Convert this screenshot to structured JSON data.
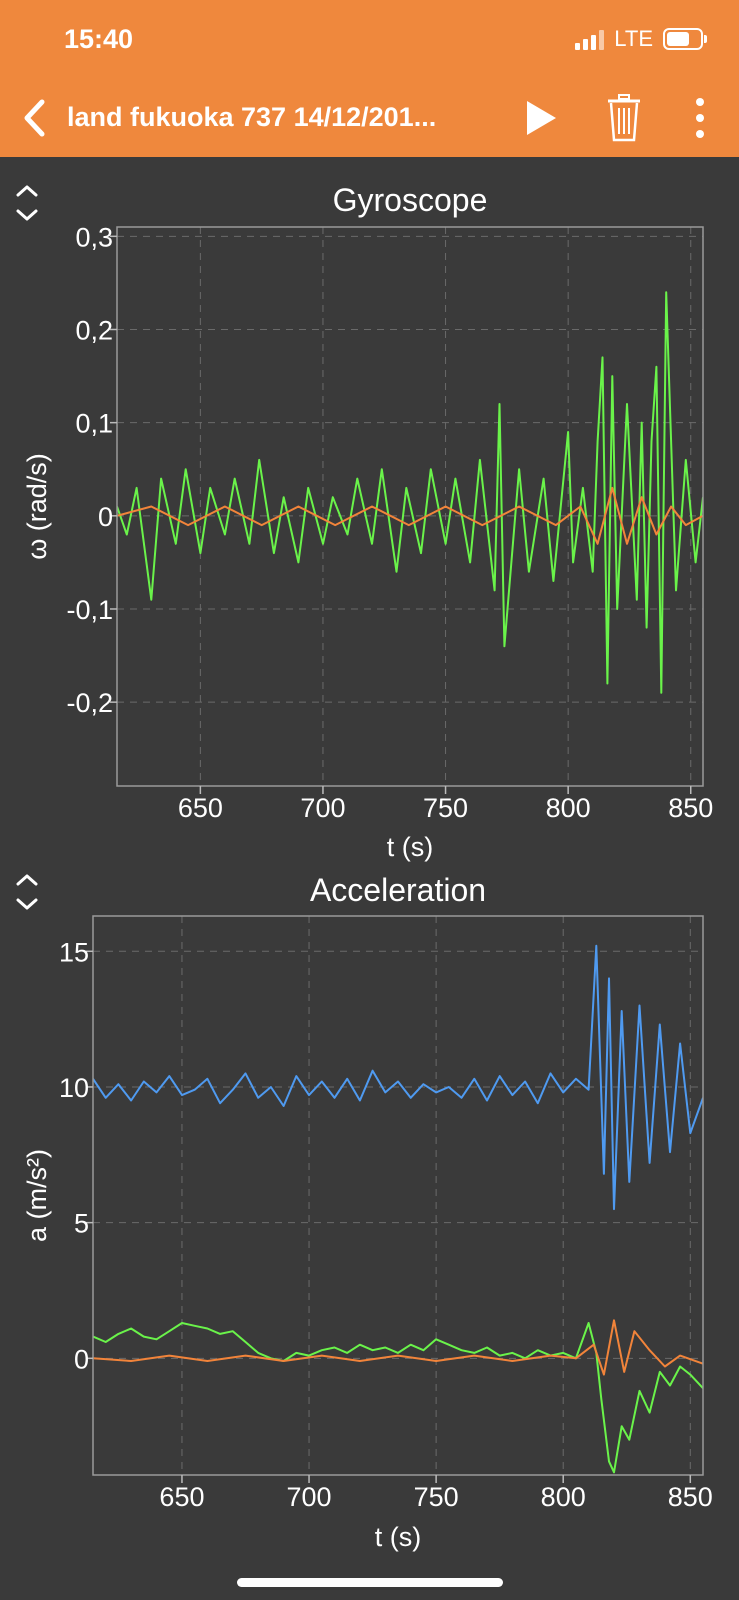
{
  "status_bar": {
    "time": "15:40",
    "network": "LTE"
  },
  "toolbar": {
    "title": "land fukuoka 737 14/12/201..."
  },
  "icons": {
    "back": "chevron-left-icon",
    "play": "play-icon",
    "trash": "trash-icon",
    "more": "more-vertical-icon",
    "expand": "expand-vertical-icon"
  },
  "colors": {
    "header": "#ef883d",
    "background": "#3a3a3a",
    "series_green": "#6af34a",
    "series_orange": "#f2843a",
    "series_blue": "#4f9af0"
  },
  "chart_data": [
    {
      "type": "line",
      "title": "Gyroscope",
      "xlabel": "t (s)",
      "ylabel": "ω (rad/s)",
      "xlim": [
        616,
        855
      ],
      "ylim": [
        -0.29,
        0.31
      ],
      "xticks": [
        650,
        700,
        750,
        800,
        850
      ],
      "xtick_labels": [
        "650",
        "700",
        "750",
        "800",
        "850"
      ],
      "yticks": [
        0.3,
        0.2,
        0.1,
        0,
        -0.1,
        -0.2
      ],
      "ytick_labels": [
        "0,3",
        "0,2",
        "0,1",
        "0",
        "-0,1",
        "-0,2"
      ],
      "grid": true,
      "series": [
        {
          "color": "green",
          "x": [
            616,
            620,
            624,
            628,
            630,
            634,
            640,
            644,
            650,
            654,
            660,
            664,
            670,
            674,
            680,
            684,
            690,
            694,
            700,
            704,
            710,
            714,
            720,
            724,
            730,
            734,
            740,
            744,
            750,
            754,
            760,
            764,
            770,
            772,
            774,
            780,
            784,
            790,
            794,
            800,
            802,
            806,
            810,
            812,
            814,
            816,
            818,
            820,
            824,
            828,
            830,
            832,
            834,
            836,
            838,
            840,
            844,
            848,
            852,
            855
          ],
          "y": [
            0.01,
            -0.02,
            0.03,
            -0.05,
            -0.09,
            0.04,
            -0.03,
            0.05,
            -0.04,
            0.03,
            -0.02,
            0.04,
            -0.03,
            0.06,
            -0.04,
            0.02,
            -0.05,
            0.03,
            -0.03,
            0.02,
            -0.02,
            0.04,
            -0.03,
            0.05,
            -0.06,
            0.03,
            -0.04,
            0.05,
            -0.03,
            0.04,
            -0.05,
            0.06,
            -0.08,
            0.12,
            -0.14,
            0.05,
            -0.06,
            0.04,
            -0.07,
            0.09,
            -0.05,
            0.03,
            -0.06,
            0.08,
            0.17,
            -0.18,
            0.15,
            -0.1,
            0.12,
            -0.09,
            0.1,
            -0.12,
            0.08,
            0.16,
            -0.19,
            0.24,
            -0.08,
            0.06,
            -0.05,
            0.02
          ]
        },
        {
          "color": "orange",
          "x": [
            616,
            630,
            645,
            660,
            675,
            690,
            705,
            720,
            735,
            750,
            765,
            780,
            795,
            805,
            812,
            818,
            824,
            830,
            836,
            842,
            848,
            855
          ],
          "y": [
            0,
            0.01,
            -0.01,
            0.01,
            -0.01,
            0.01,
            -0.01,
            0.01,
            -0.01,
            0.01,
            -0.01,
            0.01,
            -0.01,
            0.01,
            -0.03,
            0.03,
            -0.03,
            0.02,
            -0.02,
            0.01,
            -0.01,
            0
          ]
        }
      ]
    },
    {
      "type": "line",
      "title": "Acceleration",
      "xlabel": "t (s)",
      "ylabel": "a (m/s²)",
      "xlim": [
        615,
        855
      ],
      "ylim": [
        -4.3,
        16.3
      ],
      "xticks": [
        650,
        700,
        750,
        800,
        850
      ],
      "xtick_labels": [
        "650",
        "700",
        "750",
        "800",
        "850"
      ],
      "yticks": [
        15,
        10,
        5,
        0
      ],
      "ytick_labels": [
        "15",
        "10",
        "5",
        "0"
      ],
      "grid": true,
      "series": [
        {
          "color": "blue",
          "x": [
            615,
            620,
            625,
            630,
            635,
            640,
            645,
            650,
            655,
            660,
            665,
            670,
            675,
            680,
            685,
            690,
            695,
            700,
            705,
            710,
            715,
            720,
            725,
            730,
            735,
            740,
            745,
            750,
            755,
            760,
            765,
            770,
            775,
            780,
            785,
            790,
            795,
            800,
            805,
            810,
            813,
            816,
            818,
            820,
            823,
            826,
            830,
            834,
            838,
            842,
            846,
            850,
            855
          ],
          "y": [
            10.3,
            9.6,
            10.1,
            9.5,
            10.2,
            9.8,
            10.4,
            9.7,
            9.9,
            10.3,
            9.4,
            9.9,
            10.5,
            9.6,
            10.0,
            9.3,
            10.4,
            9.7,
            10.2,
            9.6,
            10.3,
            9.5,
            10.6,
            9.8,
            10.2,
            9.6,
            10.1,
            9.8,
            10.0,
            9.6,
            10.3,
            9.5,
            10.4,
            9.7,
            10.2,
            9.4,
            10.5,
            9.8,
            10.3,
            9.9,
            15.2,
            6.8,
            14.0,
            5.5,
            12.8,
            6.5,
            13.0,
            7.2,
            12.3,
            7.6,
            11.6,
            8.3,
            9.6
          ]
        },
        {
          "color": "green",
          "x": [
            615,
            620,
            625,
            630,
            635,
            640,
            645,
            650,
            655,
            660,
            665,
            670,
            675,
            680,
            685,
            690,
            695,
            700,
            705,
            710,
            715,
            720,
            725,
            730,
            735,
            740,
            745,
            750,
            755,
            760,
            765,
            770,
            775,
            780,
            785,
            790,
            795,
            800,
            805,
            810,
            813,
            815,
            818,
            820,
            823,
            826,
            830,
            834,
            838,
            842,
            846,
            850,
            855
          ],
          "y": [
            0.8,
            0.6,
            0.9,
            1.1,
            0.8,
            0.7,
            1.0,
            1.3,
            1.2,
            1.1,
            0.9,
            1.0,
            0.6,
            0.2,
            0.0,
            -0.1,
            0.2,
            0.1,
            0.3,
            0.4,
            0.2,
            0.5,
            0.3,
            0.4,
            0.2,
            0.5,
            0.3,
            0.7,
            0.5,
            0.3,
            0.2,
            0.4,
            0.1,
            0.2,
            0.0,
            0.3,
            0.1,
            0.2,
            0.0,
            1.3,
            0.2,
            -1.5,
            -3.8,
            -4.2,
            -2.5,
            -3.0,
            -1.2,
            -2.0,
            -0.5,
            -1.0,
            -0.3,
            -0.6,
            -1.1
          ]
        },
        {
          "color": "orange",
          "x": [
            615,
            630,
            645,
            660,
            675,
            690,
            705,
            720,
            735,
            750,
            765,
            780,
            795,
            805,
            812,
            816,
            820,
            824,
            828,
            834,
            840,
            846,
            855
          ],
          "y": [
            0,
            -0.1,
            0.1,
            -0.1,
            0.1,
            -0.1,
            0.1,
            -0.1,
            0.1,
            -0.1,
            0.1,
            -0.1,
            0.1,
            0,
            0.5,
            -0.6,
            1.4,
            -0.5,
            1.0,
            0.3,
            -0.3,
            0.1,
            -0.2
          ]
        }
      ]
    }
  ]
}
